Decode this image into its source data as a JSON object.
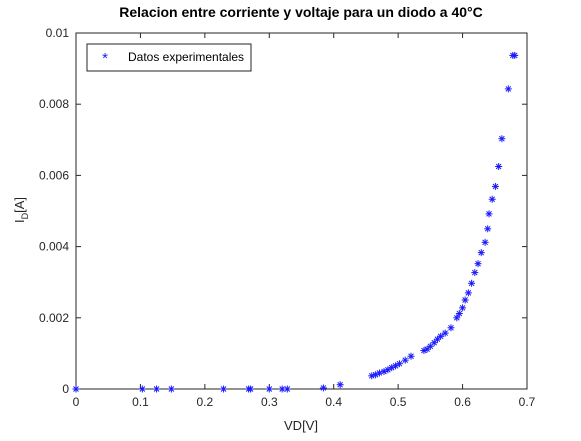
{
  "chart_data": {
    "type": "scatter",
    "title": "Relacion entre corriente y voltaje para un diodo a 40°C",
    "xlabel": "VD[V]",
    "ylabel": "I_D[A]",
    "ylabel_main": "I",
    "ylabel_sub": "D",
    "ylabel_rest": "[A]",
    "xlim": [
      0,
      0.7
    ],
    "ylim": [
      0,
      0.01
    ],
    "grid": false,
    "legend_position": "top-left",
    "x_ticks": [
      0,
      0.1,
      0.2,
      0.3,
      0.4,
      0.5,
      0.6,
      0.7
    ],
    "x_tick_labels": [
      "0",
      "0.1",
      "0.2",
      "0.3",
      "0.4",
      "0.5",
      "0.6",
      "0.7"
    ],
    "y_ticks": [
      0,
      0.002,
      0.004,
      0.006,
      0.008,
      0.01
    ],
    "y_tick_labels": [
      "0",
      "0.002",
      "0.004",
      "0.006",
      "0.008",
      "0.01"
    ],
    "marker_color": "#1a1aff",
    "series": [
      {
        "name": "Datos experimentales",
        "points": [
          [
            0.0,
            0.0
          ],
          [
            0.103,
            0.0
          ],
          [
            0.125,
            0.0
          ],
          [
            0.148,
            0.0
          ],
          [
            0.229,
            0.0
          ],
          [
            0.268,
            0.0
          ],
          [
            0.271,
            0.0
          ],
          [
            0.3,
            0.0
          ],
          [
            0.32,
            0.0
          ],
          [
            0.328,
            0.0
          ],
          [
            0.384,
            3e-05
          ],
          [
            0.41,
            0.00012
          ],
          [
            0.459,
            0.00037
          ],
          [
            0.465,
            0.0004
          ],
          [
            0.471,
            0.00045
          ],
          [
            0.478,
            0.00049
          ],
          [
            0.484,
            0.00054
          ],
          [
            0.49,
            0.0006
          ],
          [
            0.496,
            0.00065
          ],
          [
            0.502,
            0.00071
          ],
          [
            0.511,
            0.00081
          ],
          [
            0.52,
            0.00092
          ],
          [
            0.54,
            0.00108
          ],
          [
            0.545,
            0.00112
          ],
          [
            0.55,
            0.0012
          ],
          [
            0.556,
            0.0013
          ],
          [
            0.561,
            0.0014
          ],
          [
            0.566,
            0.00148
          ],
          [
            0.573,
            0.00157
          ],
          [
            0.582,
            0.00172
          ],
          [
            0.591,
            0.002
          ],
          [
            0.595,
            0.00212
          ],
          [
            0.6,
            0.00228
          ],
          [
            0.604,
            0.0025
          ],
          [
            0.609,
            0.0027
          ],
          [
            0.614,
            0.00297
          ],
          [
            0.619,
            0.00327
          ],
          [
            0.624,
            0.00352
          ],
          [
            0.629,
            0.00383
          ],
          [
            0.635,
            0.00412
          ],
          [
            0.639,
            0.0045
          ],
          [
            0.641,
            0.00492
          ],
          [
            0.646,
            0.00533
          ],
          [
            0.651,
            0.00569
          ],
          [
            0.656,
            0.00625
          ],
          [
            0.661,
            0.00703
          ],
          [
            0.671,
            0.00843
          ],
          [
            0.678,
            0.00937
          ],
          [
            0.681,
            0.00937
          ]
        ]
      }
    ]
  }
}
